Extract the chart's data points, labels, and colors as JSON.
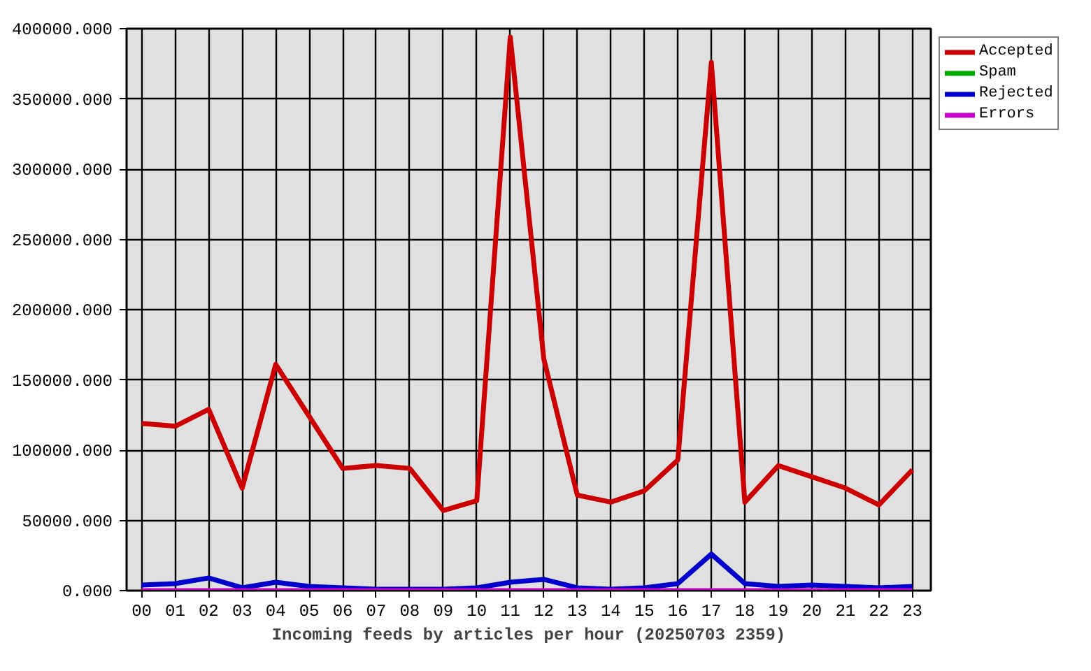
{
  "chart_data": {
    "type": "line",
    "xlabel": "Incoming feeds by articles per hour (20250703 2359)",
    "categories": [
      "00",
      "01",
      "02",
      "03",
      "04",
      "05",
      "06",
      "07",
      "08",
      "09",
      "10",
      "11",
      "12",
      "13",
      "14",
      "15",
      "16",
      "17",
      "18",
      "19",
      "20",
      "21",
      "22",
      "23"
    ],
    "series": [
      {
        "name": "Accepted",
        "color": "#cc0000",
        "values": [
          119000,
          117000,
          129000,
          73000,
          161000,
          124000,
          87000,
          89000,
          87000,
          57000,
          64000,
          394000,
          165000,
          68000,
          63000,
          71000,
          93000,
          376000,
          63000,
          89000,
          81000,
          73000,
          61000,
          86000
        ]
      },
      {
        "name": "Spam",
        "color": "#00aa00",
        "values": [
          null,
          null,
          null,
          null,
          null,
          null,
          null,
          null,
          null,
          null,
          null,
          null,
          null,
          null,
          null,
          null,
          null,
          null,
          null,
          null,
          null,
          null,
          null,
          null
        ]
      },
      {
        "name": "Rejected",
        "color": "#0000cc",
        "values": [
          4000,
          5000,
          9000,
          2000,
          6000,
          3000,
          2000,
          1000,
          1000,
          1000,
          2000,
          6000,
          8000,
          2000,
          1000,
          2000,
          5000,
          26000,
          5000,
          3000,
          4000,
          3000,
          2000,
          3000
        ]
      },
      {
        "name": "Errors",
        "color": "#cc00cc",
        "values": [
          0,
          0,
          0,
          0,
          0,
          0,
          0,
          0,
          0,
          0,
          0,
          0,
          0,
          0,
          0,
          0,
          0,
          0,
          0,
          0,
          0,
          0,
          0,
          0
        ]
      }
    ],
    "ylim": [
      0,
      400000
    ],
    "yticks": [
      {
        "value": 0,
        "label": "0.000"
      },
      {
        "value": 50000,
        "label": "50000.000"
      },
      {
        "value": 100000,
        "label": "100000.000"
      },
      {
        "value": 150000,
        "label": "150000.000"
      },
      {
        "value": 200000,
        "label": "200000.000"
      },
      {
        "value": 250000,
        "label": "250000.000"
      },
      {
        "value": 300000,
        "label": "300000.000"
      },
      {
        "value": 350000,
        "label": "350000.000"
      },
      {
        "value": 400000,
        "label": "400000.000"
      }
    ],
    "grid": true,
    "legend": "top right"
  }
}
